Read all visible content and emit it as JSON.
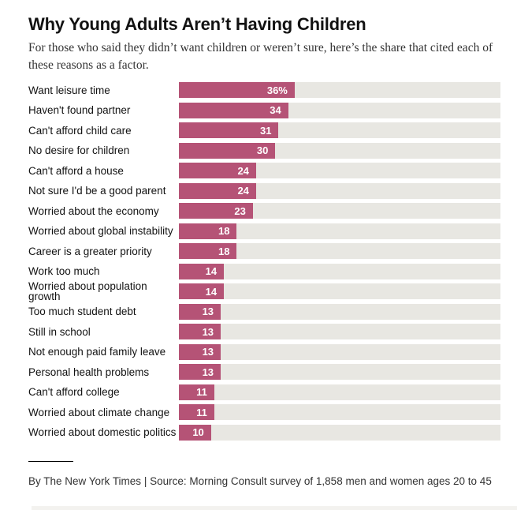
{
  "page": {
    "background": "#ffffff"
  },
  "chart_data": {
    "type": "bar",
    "orientation": "horizontal",
    "title": "Why Young Adults Aren’t Having Children",
    "subtitle": "For those who said they didn’t want children or weren’t sure, here’s the share that cited each of these reasons as a factor.",
    "xlabel": "",
    "ylabel": "",
    "xlim": [
      0,
      100
    ],
    "grid": false,
    "legend": false,
    "bar_color": "#b55376",
    "track_color": "#e8e7e2",
    "value_label_color": "#ffffff",
    "categories": [
      "Want leisure time",
      "Haven't found partner",
      "Can't afford child care",
      "No desire for children",
      "Can't afford a house",
      "Not sure I'd be a good parent",
      "Worried about the economy",
      "Worried about global instability",
      "Career is a greater priority",
      "Work too much",
      "Worried about population growth",
      "Too much student debt",
      "Still in school",
      "Not enough paid family leave",
      "Personal health problems",
      "Can't afford college",
      "Worried about climate change",
      "Worried about domestic politics"
    ],
    "values": [
      36,
      34,
      31,
      30,
      24,
      24,
      23,
      18,
      18,
      14,
      14,
      13,
      13,
      13,
      13,
      11,
      11,
      10
    ],
    "rows": [
      {
        "label": "Want leisure time",
        "value": 36,
        "display": "36%"
      },
      {
        "label": "Haven't found partner",
        "value": 34,
        "display": "34"
      },
      {
        "label": "Can't afford child care",
        "value": 31,
        "display": "31"
      },
      {
        "label": "No desire for children",
        "value": 30,
        "display": "30"
      },
      {
        "label": "Can't afford a house",
        "value": 24,
        "display": "24"
      },
      {
        "label": "Not sure I'd be a good parent",
        "value": 24,
        "display": "24"
      },
      {
        "label": "Worried about the economy",
        "value": 23,
        "display": "23"
      },
      {
        "label": "Worried about global instability",
        "value": 18,
        "display": "18"
      },
      {
        "label": "Career is a greater priority",
        "value": 18,
        "display": "18"
      },
      {
        "label": "Work too much",
        "value": 14,
        "display": "14"
      },
      {
        "label": "Worried about population growth",
        "value": 14,
        "display": "14"
      },
      {
        "label": "Too much student debt",
        "value": 13,
        "display": "13"
      },
      {
        "label": "Still in school",
        "value": 13,
        "display": "13"
      },
      {
        "label": "Not enough paid family leave",
        "value": 13,
        "display": "13"
      },
      {
        "label": "Personal health problems",
        "value": 13,
        "display": "13"
      },
      {
        "label": "Can't afford college",
        "value": 11,
        "display": "11"
      },
      {
        "label": "Worried about climate change",
        "value": 11,
        "display": "11"
      },
      {
        "label": "Worried about domestic politics",
        "value": 10,
        "display": "10"
      }
    ]
  },
  "footer": {
    "credit_source": "By The New York Times | Source: Morning Consult survey of 1,858 men and women ages 20 to 45"
  }
}
